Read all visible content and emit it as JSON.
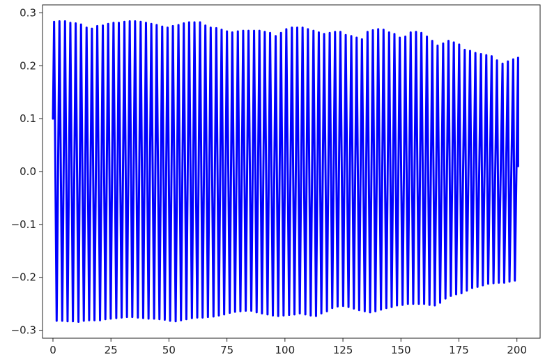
{
  "chart_data": {
    "type": "line",
    "title": "",
    "xlabel": "",
    "ylabel": "",
    "xlim": [
      -4.5,
      210
    ],
    "ylim": [
      -0.315,
      0.315
    ],
    "xticks": [
      0,
      25,
      50,
      75,
      100,
      125,
      150,
      175,
      200
    ],
    "xtick_labels": [
      "0",
      "25",
      "50",
      "75",
      "100",
      "125",
      "150",
      "175",
      "200"
    ],
    "yticks": [
      -0.3,
      -0.2,
      -0.1,
      0.0,
      0.1,
      0.2,
      0.3
    ],
    "ytick_labels": [
      "−0.3",
      "−0.2",
      "−0.1",
      "0.0",
      "0.1",
      "0.2",
      "0.3"
    ],
    "grid": false,
    "legend": "none",
    "series": [
      {
        "color": "#0000ff",
        "x_start": 0,
        "x_end": 200.5,
        "start_value": 0.1,
        "end_value": 0.01,
        "period": 2.33,
        "peaks": [
          [
            0.5,
            0.283
          ],
          [
            2.8,
            0.284
          ],
          [
            5.2,
            0.284
          ],
          [
            7.5,
            0.281
          ],
          [
            9.8,
            0.28
          ],
          [
            12.1,
            0.278
          ],
          [
            14.5,
            0.272
          ],
          [
            16.8,
            0.27
          ],
          [
            19.1,
            0.275
          ],
          [
            21.5,
            0.276
          ],
          [
            23.8,
            0.279
          ],
          [
            26.1,
            0.281
          ],
          [
            28.4,
            0.281
          ],
          [
            30.8,
            0.283
          ],
          [
            33.1,
            0.284
          ],
          [
            35.4,
            0.284
          ],
          [
            37.8,
            0.283
          ],
          [
            40.1,
            0.281
          ],
          [
            42.4,
            0.279
          ],
          [
            44.7,
            0.277
          ],
          [
            47.1,
            0.274
          ],
          [
            49.4,
            0.272
          ],
          [
            51.7,
            0.275
          ],
          [
            54.1,
            0.277
          ],
          [
            56.4,
            0.28
          ],
          [
            58.7,
            0.282
          ],
          [
            61.0,
            0.282
          ],
          [
            63.4,
            0.282
          ],
          [
            65.7,
            0.276
          ],
          [
            68.0,
            0.272
          ],
          [
            70.4,
            0.271
          ],
          [
            72.7,
            0.268
          ],
          [
            75.0,
            0.265
          ],
          [
            77.3,
            0.263
          ],
          [
            79.7,
            0.265
          ],
          [
            82.0,
            0.266
          ],
          [
            84.3,
            0.266
          ],
          [
            86.7,
            0.266
          ],
          [
            89.0,
            0.266
          ],
          [
            91.3,
            0.264
          ],
          [
            93.6,
            0.262
          ],
          [
            96.0,
            0.256
          ],
          [
            98.3,
            0.262
          ],
          [
            100.6,
            0.269
          ],
          [
            103.0,
            0.272
          ],
          [
            105.3,
            0.272
          ],
          [
            107.6,
            0.272
          ],
          [
            109.9,
            0.269
          ],
          [
            112.3,
            0.266
          ],
          [
            114.6,
            0.263
          ],
          [
            116.9,
            0.26
          ],
          [
            119.3,
            0.262
          ],
          [
            121.6,
            0.264
          ],
          [
            123.9,
            0.264
          ],
          [
            126.2,
            0.258
          ],
          [
            128.6,
            0.256
          ],
          [
            130.9,
            0.253
          ],
          [
            133.2,
            0.25
          ],
          [
            135.6,
            0.264
          ],
          [
            137.9,
            0.267
          ],
          [
            140.2,
            0.269
          ],
          [
            142.5,
            0.268
          ],
          [
            144.9,
            0.263
          ],
          [
            147.2,
            0.26
          ],
          [
            149.5,
            0.253
          ],
          [
            151.9,
            0.255
          ],
          [
            154.2,
            0.263
          ],
          [
            156.5,
            0.264
          ],
          [
            158.8,
            0.262
          ],
          [
            161.2,
            0.255
          ],
          [
            163.5,
            0.247
          ],
          [
            165.8,
            0.238
          ],
          [
            168.2,
            0.242
          ],
          [
            170.5,
            0.247
          ],
          [
            172.8,
            0.244
          ],
          [
            175.1,
            0.24
          ],
          [
            177.5,
            0.23
          ],
          [
            179.8,
            0.228
          ],
          [
            182.1,
            0.224
          ],
          [
            184.5,
            0.222
          ],
          [
            186.8,
            0.22
          ],
          [
            189.1,
            0.218
          ],
          [
            191.4,
            0.21
          ],
          [
            193.8,
            0.204
          ],
          [
            196.1,
            0.208
          ],
          [
            198.4,
            0.212
          ],
          [
            200.5,
            0.215
          ]
        ],
        "troughs": [
          [
            1.6,
            -0.282
          ],
          [
            4.0,
            -0.282
          ],
          [
            6.3,
            -0.283
          ],
          [
            8.6,
            -0.283
          ],
          [
            11.0,
            -0.284
          ],
          [
            13.3,
            -0.282
          ],
          [
            15.6,
            -0.281
          ],
          [
            17.9,
            -0.281
          ],
          [
            20.3,
            -0.281
          ],
          [
            22.6,
            -0.279
          ],
          [
            24.9,
            -0.278
          ],
          [
            27.3,
            -0.277
          ],
          [
            29.6,
            -0.276
          ],
          [
            31.9,
            -0.275
          ],
          [
            34.2,
            -0.275
          ],
          [
            36.6,
            -0.276
          ],
          [
            38.9,
            -0.277
          ],
          [
            41.2,
            -0.278
          ],
          [
            43.6,
            -0.278
          ],
          [
            45.9,
            -0.279
          ],
          [
            48.2,
            -0.28
          ],
          [
            50.5,
            -0.282
          ],
          [
            52.9,
            -0.283
          ],
          [
            55.2,
            -0.281
          ],
          [
            57.5,
            -0.279
          ],
          [
            59.9,
            -0.277
          ],
          [
            62.2,
            -0.276
          ],
          [
            64.5,
            -0.276
          ],
          [
            66.8,
            -0.275
          ],
          [
            69.2,
            -0.274
          ],
          [
            71.5,
            -0.272
          ],
          [
            73.8,
            -0.27
          ],
          [
            76.2,
            -0.267
          ],
          [
            78.5,
            -0.265
          ],
          [
            80.8,
            -0.264
          ],
          [
            83.1,
            -0.263
          ],
          [
            85.5,
            -0.263
          ],
          [
            87.8,
            -0.266
          ],
          [
            90.1,
            -0.268
          ],
          [
            92.5,
            -0.27
          ],
          [
            94.8,
            -0.272
          ],
          [
            97.1,
            -0.273
          ],
          [
            99.4,
            -0.272
          ],
          [
            101.8,
            -0.271
          ],
          [
            104.1,
            -0.27
          ],
          [
            106.4,
            -0.268
          ],
          [
            108.8,
            -0.27
          ],
          [
            111.1,
            -0.272
          ],
          [
            113.4,
            -0.273
          ],
          [
            115.7,
            -0.268
          ],
          [
            118.1,
            -0.264
          ],
          [
            120.4,
            -0.258
          ],
          [
            122.7,
            -0.255
          ],
          [
            125.1,
            -0.254
          ],
          [
            127.4,
            -0.256
          ],
          [
            129.7,
            -0.259
          ],
          [
            132.0,
            -0.262
          ],
          [
            134.4,
            -0.264
          ],
          [
            136.7,
            -0.266
          ],
          [
            139.0,
            -0.264
          ],
          [
            141.4,
            -0.261
          ],
          [
            143.7,
            -0.258
          ],
          [
            146.0,
            -0.256
          ],
          [
            148.3,
            -0.253
          ],
          [
            150.7,
            -0.252
          ],
          [
            153.0,
            -0.25
          ],
          [
            155.3,
            -0.25
          ],
          [
            157.7,
            -0.25
          ],
          [
            160.0,
            -0.25
          ],
          [
            162.3,
            -0.252
          ],
          [
            164.6,
            -0.253
          ],
          [
            166.9,
            -0.248
          ],
          [
            169.2,
            -0.24
          ],
          [
            171.5,
            -0.235
          ],
          [
            173.8,
            -0.232
          ],
          [
            176.1,
            -0.23
          ],
          [
            178.4,
            -0.225
          ],
          [
            180.7,
            -0.22
          ],
          [
            183.0,
            -0.218
          ],
          [
            185.3,
            -0.215
          ],
          [
            187.6,
            -0.212
          ],
          [
            189.9,
            -0.211
          ],
          [
            192.2,
            -0.21
          ],
          [
            194.5,
            -0.21
          ],
          [
            196.8,
            -0.208
          ],
          [
            199.1,
            -0.206
          ]
        ]
      }
    ]
  }
}
